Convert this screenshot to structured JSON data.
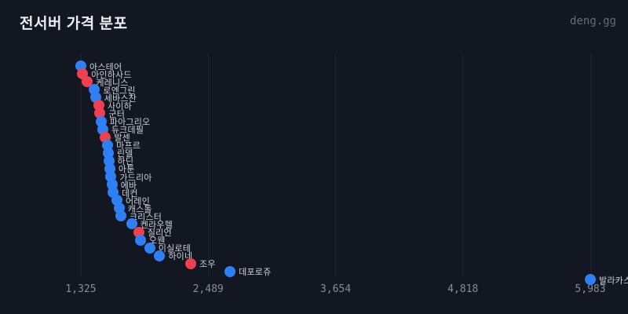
{
  "header": {
    "title": "전서버 가격 분포",
    "watermark": "deng.gg"
  },
  "chart_data": {
    "type": "scatter",
    "title": "전서버 가격 분포",
    "xlabel": "",
    "ylabel": "",
    "xlim": [
      1325,
      5983
    ],
    "x_ticks": [
      1325,
      2489,
      3654,
      4818,
      5983
    ],
    "x_tick_labels": [
      "1,325",
      "2,489",
      "3,654",
      "4,818",
      "5,983"
    ],
    "grid": "vertical-only",
    "legend_position": "none",
    "colors": {
      "background": "#131722",
      "blue_point": "#2f80f5",
      "red_point": "#ef4050"
    },
    "note": "y axis = server rank by price (cheapest at top), x axis = price; label beside each point",
    "servers": [
      {
        "name": "아스테어",
        "price": 1325,
        "color": "blue"
      },
      {
        "name": "아인하사드",
        "price": 1340,
        "color": "red"
      },
      {
        "name": "케레니스",
        "price": 1385,
        "color": "red"
      },
      {
        "name": "로엔그린",
        "price": 1450,
        "color": "blue"
      },
      {
        "name": "세바스찬",
        "price": 1460,
        "color": "blue"
      },
      {
        "name": "사이하",
        "price": 1490,
        "color": "red"
      },
      {
        "name": "군터",
        "price": 1500,
        "color": "red"
      },
      {
        "name": "파아그리오",
        "price": 1510,
        "color": "blue"
      },
      {
        "name": "듀크데필",
        "price": 1525,
        "color": "blue"
      },
      {
        "name": "발센",
        "price": 1550,
        "color": "red"
      },
      {
        "name": "마프르",
        "price": 1570,
        "color": "blue"
      },
      {
        "name": "린델",
        "price": 1575,
        "color": "blue"
      },
      {
        "name": "하딘",
        "price": 1580,
        "color": "blue"
      },
      {
        "name": "아툰",
        "price": 1590,
        "color": "blue"
      },
      {
        "name": "가드리아",
        "price": 1600,
        "color": "blue"
      },
      {
        "name": "에바",
        "price": 1610,
        "color": "blue"
      },
      {
        "name": "데컨",
        "price": 1620,
        "color": "blue"
      },
      {
        "name": "어레인",
        "price": 1655,
        "color": "blue"
      },
      {
        "name": "캐스톨",
        "price": 1675,
        "color": "blue"
      },
      {
        "name": "크리스터",
        "price": 1690,
        "color": "blue"
      },
      {
        "name": "켄라우헬",
        "price": 1790,
        "color": "blue"
      },
      {
        "name": "질리언",
        "price": 1855,
        "color": "red"
      },
      {
        "name": "오웬",
        "price": 1870,
        "color": "blue"
      },
      {
        "name": "이실로테",
        "price": 1955,
        "color": "blue"
      },
      {
        "name": "하이네",
        "price": 2045,
        "color": "blue"
      },
      {
        "name": "조우",
        "price": 2330,
        "color": "red"
      },
      {
        "name": "데포로쥬",
        "price": 2690,
        "color": "blue"
      },
      {
        "name": "발라카스",
        "price": 5983,
        "color": "blue"
      }
    ]
  }
}
